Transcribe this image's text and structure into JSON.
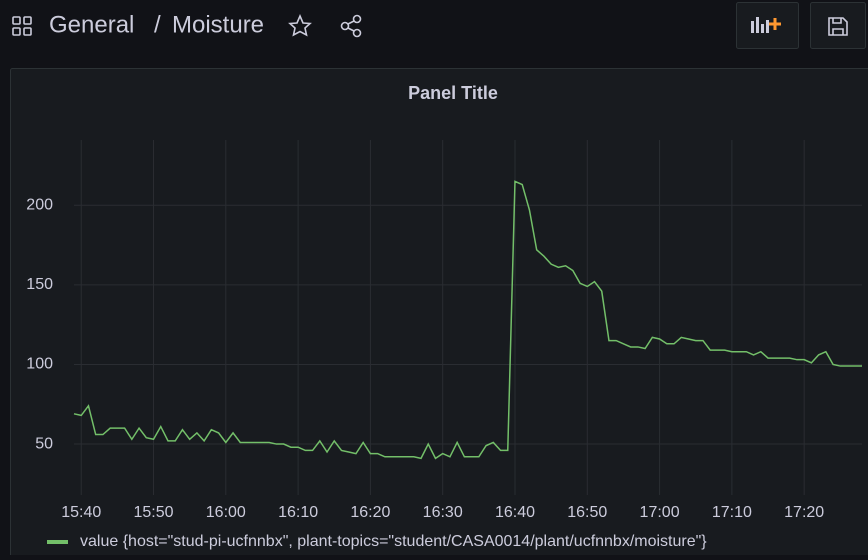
{
  "header": {
    "folder": "General",
    "separator": "/",
    "title": "Moisture"
  },
  "chart_data": {
    "type": "line",
    "title": "Panel Title",
    "x": [
      "15:39",
      "15:40",
      "15:41",
      "15:42",
      "15:43",
      "15:44",
      "15:45",
      "15:46",
      "15:47",
      "15:48",
      "15:49",
      "15:50",
      "15:51",
      "15:52",
      "15:53",
      "15:54",
      "15:55",
      "15:56",
      "15:57",
      "15:58",
      "15:59",
      "16:00",
      "16:01",
      "16:02",
      "16:03",
      "16:04",
      "16:05",
      "16:06",
      "16:07",
      "16:08",
      "16:09",
      "16:10",
      "16:11",
      "16:12",
      "16:13",
      "16:14",
      "16:15",
      "16:16",
      "16:17",
      "16:18",
      "16:19",
      "16:20",
      "16:21",
      "16:22",
      "16:23",
      "16:24",
      "16:25",
      "16:26",
      "16:27",
      "16:28",
      "16:29",
      "16:30",
      "16:31",
      "16:32",
      "16:33",
      "16:34",
      "16:35",
      "16:36",
      "16:37",
      "16:38",
      "16:39",
      "16:40",
      "16:41",
      "16:42",
      "16:43",
      "16:44",
      "16:45",
      "16:46",
      "16:47",
      "16:48",
      "16:49",
      "16:50",
      "16:51",
      "16:52",
      "16:53",
      "16:54",
      "16:55",
      "16:56",
      "16:57",
      "16:58",
      "16:59",
      "17:00",
      "17:01",
      "17:02",
      "17:03",
      "17:04",
      "17:05",
      "17:06",
      "17:07",
      "17:08",
      "17:09",
      "17:10",
      "17:11",
      "17:12",
      "17:13",
      "17:14",
      "17:15",
      "17:16",
      "17:17",
      "17:18",
      "17:19",
      "17:20",
      "17:21",
      "17:22",
      "17:23",
      "17:24",
      "17:25",
      "17:26",
      "17:27",
      "17:28"
    ],
    "series": [
      {
        "name": "value {host=\"stud-pi-ucfnnbx\", plant-topics=\"student/CASA0014/plant/ucfnnbx/moisture\"}",
        "color": "#73bf69",
        "values": [
          69,
          68,
          74,
          56,
          56,
          60,
          60,
          60,
          53,
          60,
          54,
          53,
          61,
          52,
          52,
          59,
          53,
          57,
          52,
          59,
          57,
          51,
          57,
          51,
          51,
          51,
          51,
          51,
          50,
          50,
          48,
          48,
          46,
          46,
          52,
          45,
          52,
          46,
          45,
          44,
          51,
          44,
          44,
          42,
          42,
          42,
          42,
          42,
          41,
          50,
          41,
          44,
          42,
          51,
          42,
          42,
          42,
          49,
          51,
          46,
          46,
          215,
          213,
          197,
          172,
          168,
          163,
          161,
          162,
          159,
          151,
          149,
          152,
          146,
          115,
          115,
          113,
          111,
          111,
          110,
          117,
          116,
          113,
          113,
          117,
          116,
          115,
          115,
          109,
          109,
          109,
          108,
          108,
          108,
          106,
          108,
          104,
          104,
          104,
          104,
          103,
          103,
          101,
          106,
          108,
          100,
          99,
          99,
          99,
          99
        ]
      }
    ],
    "xlim": [
      "15:39",
      "17:28"
    ],
    "xticks": [
      "15:40",
      "15:50",
      "16:00",
      "16:10",
      "16:20",
      "16:30",
      "16:40",
      "16:50",
      "17:00",
      "17:10",
      "17:20"
    ],
    "ylim": [
      18,
      241
    ],
    "yticks": [
      50,
      100,
      150,
      200
    ],
    "grid": true,
    "legend": "bottom-left"
  }
}
